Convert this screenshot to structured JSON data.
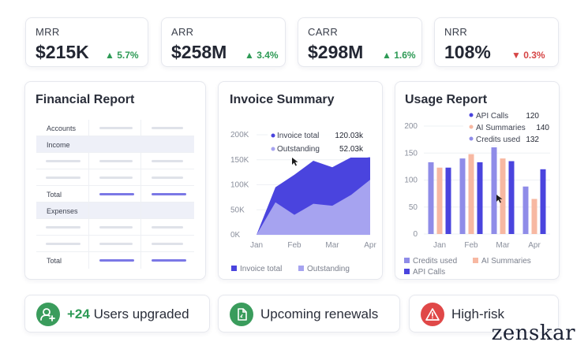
{
  "kpis": [
    {
      "label": "MRR",
      "value": "$215K",
      "change": "5.7%",
      "direction": "up"
    },
    {
      "label": "ARR",
      "value": "$258M",
      "change": "3.4%",
      "direction": "up"
    },
    {
      "label": "CARR",
      "value": "$298M",
      "change": "1.6%",
      "direction": "up"
    },
    {
      "label": "NRR",
      "value": "108%",
      "change": "0.3%",
      "direction": "down"
    }
  ],
  "financial_report": {
    "title": "Financial Report",
    "rows": [
      "Accounts",
      "Income",
      "Total",
      "Expenses",
      "Total"
    ]
  },
  "invoice_summary": {
    "title": "Invoice Summary",
    "tooltip": [
      {
        "label": "Invoice total",
        "value": "120.03k"
      },
      {
        "label": "Outstanding",
        "value": "52.03k"
      }
    ],
    "legend": [
      "Invoice total",
      "Outstanding"
    ]
  },
  "usage_report": {
    "title": "Usage Report",
    "tooltip": [
      {
        "label": "API Calls",
        "value": "120"
      },
      {
        "label": "AI Summaries",
        "value": "140"
      },
      {
        "label": "Credits used",
        "value": "132"
      }
    ],
    "legend": [
      "Credits used",
      "AI Summaries",
      "API Calls"
    ]
  },
  "pills": {
    "upgraded_count": "+24",
    "upgraded_text": "Users upgraded",
    "renewals": "Upcoming renewals",
    "risk": "High-risk"
  },
  "brand": "zenskar",
  "colors": {
    "up": "#2d9a55",
    "down": "#d64545",
    "primary": "#4a44de",
    "secondary": "#a6a3f0",
    "salmon": "#f7b8a2"
  },
  "chart_data": [
    {
      "type": "area",
      "title": "Invoice Summary",
      "categories": [
        "Jan",
        "Feb",
        "Mar",
        "Apr"
      ],
      "x": [
        0,
        0.5,
        1,
        1.5,
        2,
        2.5,
        3
      ],
      "series": [
        {
          "name": "Invoice total",
          "values": [
            0,
            95,
            120,
            148,
            135,
            155,
            155
          ]
        },
        {
          "name": "Outstanding",
          "values": [
            0,
            65,
            40,
            62,
            58,
            80,
            110
          ]
        }
      ],
      "yticks": [
        "0K",
        "50K",
        "100K",
        "150K",
        "200K"
      ],
      "ylim": [
        0,
        200
      ]
    },
    {
      "type": "bar",
      "title": "Usage Report",
      "categories": [
        "Jan",
        "Feb",
        "Mar",
        "Apr"
      ],
      "series": [
        {
          "name": "Credits used",
          "values": [
            133,
            140,
            165,
            88
          ]
        },
        {
          "name": "AI Summaries",
          "values": [
            123,
            148,
            140,
            65
          ]
        },
        {
          "name": "API Calls",
          "values": [
            123,
            133,
            135,
            120
          ]
        }
      ],
      "yticks": [
        "0",
        "50",
        "100",
        "150",
        "200"
      ],
      "ylim": [
        0,
        200
      ]
    }
  ]
}
